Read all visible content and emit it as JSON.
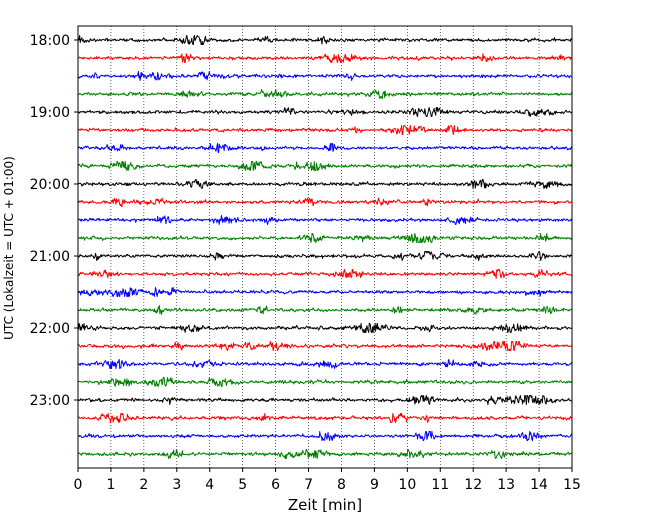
{
  "chart_data": {
    "type": "line",
    "title": "",
    "xlabel": "Zeit  [min]",
    "ylabel": "UTC (Lokalzeit = UTC + 01:00)",
    "xlim": [
      0,
      15
    ],
    "x_ticks": [
      0,
      1,
      2,
      3,
      4,
      5,
      6,
      7,
      8,
      9,
      10,
      11,
      12,
      13,
      14,
      15
    ],
    "x_tick_labels": [
      "0",
      "1",
      "2",
      "3",
      "4",
      "5",
      "6",
      "7",
      "8",
      "9",
      "10",
      "11",
      "12",
      "13",
      "14",
      "15"
    ],
    "y_tick_labels": [
      "18:00",
      "19:00",
      "20:00",
      "21:00",
      "22:00",
      "23:00"
    ],
    "grid": "vertical dotted at each minute",
    "trace_minutes": 15,
    "trace_colors_cycle": [
      "#000000",
      "#ff0000",
      "#0000ff",
      "#008000"
    ],
    "traces": [
      {
        "start": "18:00"
      },
      {
        "start": "18:15"
      },
      {
        "start": "18:30"
      },
      {
        "start": "18:45"
      },
      {
        "start": "19:00"
      },
      {
        "start": "19:15"
      },
      {
        "start": "19:30"
      },
      {
        "start": "19:45"
      },
      {
        "start": "20:00"
      },
      {
        "start": "20:15"
      },
      {
        "start": "20:30"
      },
      {
        "start": "20:45"
      },
      {
        "start": "21:00"
      },
      {
        "start": "21:15"
      },
      {
        "start": "21:30"
      },
      {
        "start": "21:45"
      },
      {
        "start": "22:00"
      },
      {
        "start": "22:15"
      },
      {
        "start": "22:30"
      },
      {
        "start": "22:45"
      },
      {
        "start": "23:00"
      },
      {
        "start": "23:15"
      },
      {
        "start": "23:30"
      },
      {
        "start": "23:45"
      }
    ]
  }
}
